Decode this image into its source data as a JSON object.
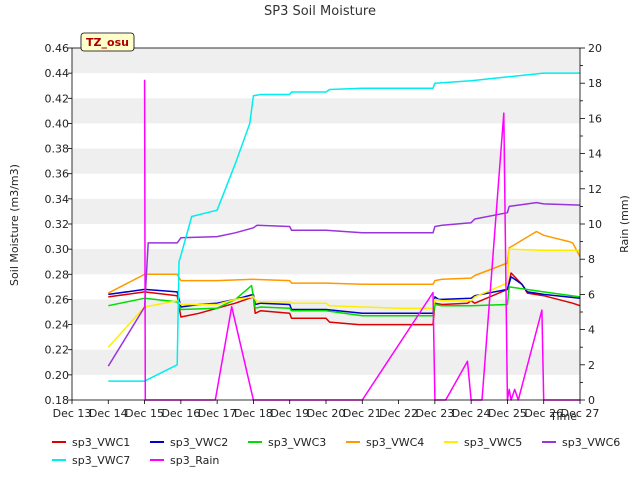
{
  "chart_data": {
    "type": "line",
    "title": "SP3 Soil Moisture",
    "xlabel": "Time",
    "ylabel": "Soil Moisture (m3/m3)",
    "y2label": "Rain (mm)",
    "badge": "TZ_osu",
    "ylim": [
      0.18,
      0.46
    ],
    "y2lim": [
      0,
      20
    ],
    "yticks": [
      0.18,
      0.2,
      0.22,
      0.24,
      0.26,
      0.28,
      0.3,
      0.32,
      0.34,
      0.36,
      0.38,
      0.4,
      0.42,
      0.44,
      0.46
    ],
    "ytick_labels": [
      "0.18",
      "0.20",
      "0.22",
      "0.24",
      "0.26",
      "0.28",
      "0.30",
      "0.32",
      "0.34",
      "0.36",
      "0.38",
      "0.40",
      "0.42",
      "0.44",
      "0.46"
    ],
    "y2ticks": [
      0,
      2,
      4,
      6,
      8,
      10,
      12,
      14,
      16,
      18,
      20
    ],
    "y2tick_labels": [
      "0",
      "2",
      "4",
      "6",
      "8",
      "10",
      "12",
      "14",
      "16",
      "18",
      "20"
    ],
    "xlim": [
      13,
      27
    ],
    "xticks": [
      13,
      14,
      15,
      16,
      17,
      18,
      19,
      20,
      21,
      22,
      23,
      24,
      25,
      26,
      27
    ],
    "xtick_labels": [
      "Dec 13",
      "Dec 14",
      "Dec 15",
      "Dec 16",
      "Dec 17",
      "Dec 18",
      "Dec 19",
      "Dec 20",
      "Dec 21",
      "Dec 22",
      "Dec 23",
      "Dec 24",
      "Dec 25",
      "Dec 26",
      "Dec 27"
    ],
    "grid_bands": true,
    "legend_position": "bottom",
    "series": [
      {
        "name": "sp3_VWC1",
        "color": "#dd0000",
        "axis": "left",
        "points": [
          [
            14,
            0.262
          ],
          [
            15,
            0.266
          ],
          [
            15.9,
            0.263
          ],
          [
            16,
            0.246
          ],
          [
            16.5,
            0.249
          ],
          [
            17,
            0.253
          ],
          [
            17.5,
            0.257
          ],
          [
            18,
            0.262
          ],
          [
            18.05,
            0.249
          ],
          [
            18.2,
            0.251
          ],
          [
            19,
            0.249
          ],
          [
            19.05,
            0.245
          ],
          [
            20,
            0.245
          ],
          [
            20.1,
            0.242
          ],
          [
            20.9,
            0.24
          ],
          [
            21,
            0.24
          ],
          [
            22,
            0.24
          ],
          [
            22.95,
            0.24
          ],
          [
            23,
            0.257
          ],
          [
            23.2,
            0.256
          ],
          [
            23.9,
            0.257
          ],
          [
            24,
            0.259
          ],
          [
            24.1,
            0.257
          ],
          [
            25,
            0.268
          ],
          [
            25.1,
            0.281
          ],
          [
            25.4,
            0.272
          ],
          [
            25.55,
            0.265
          ],
          [
            26,
            0.263
          ],
          [
            26.8,
            0.257
          ],
          [
            27,
            0.255
          ]
        ]
      },
      {
        "name": "sp3_VWC2",
        "color": "#0000cc",
        "axis": "left",
        "points": [
          [
            14,
            0.264
          ],
          [
            15,
            0.268
          ],
          [
            15.9,
            0.266
          ],
          [
            16,
            0.254
          ],
          [
            16.5,
            0.256
          ],
          [
            17,
            0.257
          ],
          [
            17.5,
            0.26
          ],
          [
            18,
            0.264
          ],
          [
            18.05,
            0.256
          ],
          [
            18.2,
            0.257
          ],
          [
            19,
            0.256
          ],
          [
            19.05,
            0.252
          ],
          [
            20,
            0.252
          ],
          [
            21,
            0.249
          ],
          [
            22,
            0.249
          ],
          [
            22.95,
            0.249
          ],
          [
            23,
            0.262
          ],
          [
            23.1,
            0.26
          ],
          [
            23.2,
            0.26
          ],
          [
            24,
            0.261
          ],
          [
            24.1,
            0.263
          ],
          [
            25,
            0.268
          ],
          [
            25.1,
            0.278
          ],
          [
            25.4,
            0.272
          ],
          [
            25.55,
            0.266
          ],
          [
            26,
            0.264
          ],
          [
            27,
            0.261
          ]
        ]
      },
      {
        "name": "sp3_VWC3",
        "color": "#00dd00",
        "axis": "left",
        "points": [
          [
            14,
            0.255
          ],
          [
            15,
            0.261
          ],
          [
            15.9,
            0.258
          ],
          [
            16,
            0.252
          ],
          [
            17,
            0.253
          ],
          [
            17.5,
            0.26
          ],
          [
            17.95,
            0.271
          ],
          [
            18.05,
            0.253
          ],
          [
            18.2,
            0.254
          ],
          [
            19,
            0.253
          ],
          [
            19.05,
            0.251
          ],
          [
            20,
            0.251
          ],
          [
            21,
            0.247
          ],
          [
            22,
            0.247
          ],
          [
            22.95,
            0.247
          ],
          [
            23,
            0.256
          ],
          [
            23.2,
            0.255
          ],
          [
            24,
            0.255
          ],
          [
            25,
            0.256
          ],
          [
            25.05,
            0.27
          ],
          [
            26,
            0.266
          ],
          [
            27,
            0.262
          ]
        ]
      },
      {
        "name": "sp3_VWC4",
        "color": "#ff9900",
        "axis": "left",
        "points": [
          [
            14,
            0.265
          ],
          [
            15,
            0.28
          ],
          [
            15.9,
            0.28
          ],
          [
            16,
            0.275
          ],
          [
            17,
            0.275
          ],
          [
            18,
            0.276
          ],
          [
            19,
            0.275
          ],
          [
            19.05,
            0.273
          ],
          [
            20,
            0.273
          ],
          [
            21,
            0.272
          ],
          [
            22,
            0.272
          ],
          [
            22.95,
            0.272
          ],
          [
            23,
            0.275
          ],
          [
            23.2,
            0.276
          ],
          [
            24,
            0.277
          ],
          [
            24.1,
            0.279
          ],
          [
            25,
            0.289
          ],
          [
            25.05,
            0.301
          ],
          [
            25.8,
            0.314
          ],
          [
            26,
            0.311
          ],
          [
            26.7,
            0.306
          ],
          [
            26.8,
            0.305
          ],
          [
            27,
            0.294
          ]
        ]
      },
      {
        "name": "sp3_VWC5",
        "color": "#ffee00",
        "axis": "left",
        "points": [
          [
            14,
            0.222
          ],
          [
            15,
            0.254
          ],
          [
            15.9,
            0.259
          ],
          [
            16,
            0.256
          ],
          [
            17,
            0.256
          ],
          [
            17.5,
            0.26
          ],
          [
            18,
            0.262
          ],
          [
            18.1,
            0.258
          ],
          [
            19,
            0.258
          ],
          [
            19.05,
            0.257
          ],
          [
            20,
            0.257
          ],
          [
            20.1,
            0.255
          ],
          [
            21,
            0.254
          ],
          [
            22,
            0.253
          ],
          [
            22.95,
            0.253
          ],
          [
            23,
            0.26
          ],
          [
            23.2,
            0.259
          ],
          [
            24,
            0.259
          ],
          [
            24.1,
            0.262
          ],
          [
            25,
            0.273
          ],
          [
            25.05,
            0.3
          ],
          [
            26,
            0.299
          ],
          [
            27,
            0.299
          ]
        ]
      },
      {
        "name": "sp3_VWC6",
        "color": "#9933dd",
        "axis": "left",
        "points": [
          [
            14,
            0.207
          ],
          [
            15,
            0.254
          ],
          [
            15.1,
            0.305
          ],
          [
            15.9,
            0.305
          ],
          [
            16,
            0.309
          ],
          [
            17,
            0.31
          ],
          [
            17.5,
            0.313
          ],
          [
            18,
            0.317
          ],
          [
            18.1,
            0.319
          ],
          [
            19,
            0.318
          ],
          [
            19.05,
            0.315
          ],
          [
            20,
            0.315
          ],
          [
            20.5,
            0.314
          ],
          [
            21,
            0.313
          ],
          [
            22,
            0.313
          ],
          [
            22.95,
            0.313
          ],
          [
            23,
            0.318
          ],
          [
            23.2,
            0.319
          ],
          [
            24,
            0.321
          ],
          [
            24.1,
            0.324
          ],
          [
            25,
            0.329
          ],
          [
            25.05,
            0.334
          ],
          [
            25.8,
            0.337
          ],
          [
            26,
            0.336
          ],
          [
            27,
            0.335
          ]
        ]
      },
      {
        "name": "sp3_VWC7",
        "color": "#00eeee",
        "axis": "left",
        "points": [
          [
            14,
            0.195
          ],
          [
            15,
            0.195
          ],
          [
            15.9,
            0.208
          ],
          [
            15.95,
            0.29
          ],
          [
            16,
            0.295
          ],
          [
            16.3,
            0.326
          ],
          [
            17,
            0.331
          ],
          [
            17.5,
            0.368
          ],
          [
            17.9,
            0.4
          ],
          [
            18,
            0.422
          ],
          [
            18.2,
            0.423
          ],
          [
            19,
            0.423
          ],
          [
            19.05,
            0.425
          ],
          [
            20,
            0.425
          ],
          [
            20.1,
            0.427
          ],
          [
            21,
            0.428
          ],
          [
            22,
            0.428
          ],
          [
            22.95,
            0.428
          ],
          [
            23,
            0.432
          ],
          [
            24,
            0.434
          ],
          [
            25,
            0.437
          ],
          [
            26,
            0.44
          ],
          [
            27,
            0.44
          ]
        ]
      },
      {
        "name": "sp3_Rain",
        "color": "#ff00ff",
        "axis": "right",
        "points": [
          [
            15,
            18.2
          ],
          [
            15.02,
            0
          ],
          [
            16,
            0
          ],
          [
            16.95,
            0
          ],
          [
            17.4,
            5.3
          ],
          [
            18,
            0
          ],
          [
            21,
            0
          ],
          [
            22.95,
            6.1
          ],
          [
            23.0,
            0
          ],
          [
            23.3,
            0
          ],
          [
            23.9,
            2.2
          ],
          [
            24.0,
            0
          ],
          [
            24.3,
            0
          ],
          [
            24.9,
            16.3
          ],
          [
            25.0,
            0
          ],
          [
            25.05,
            0.6
          ],
          [
            25.1,
            0
          ],
          [
            25.2,
            0.6
          ],
          [
            25.3,
            0
          ],
          [
            25.95,
            5.1
          ],
          [
            26.0,
            0
          ],
          [
            27,
            0
          ]
        ]
      }
    ],
    "legend": [
      "sp3_VWC1",
      "sp3_VWC2",
      "sp3_VWC3",
      "sp3_VWC4",
      "sp3_VWC5",
      "sp3_VWC6",
      "sp3_VWC7",
      "sp3_Rain"
    ]
  }
}
